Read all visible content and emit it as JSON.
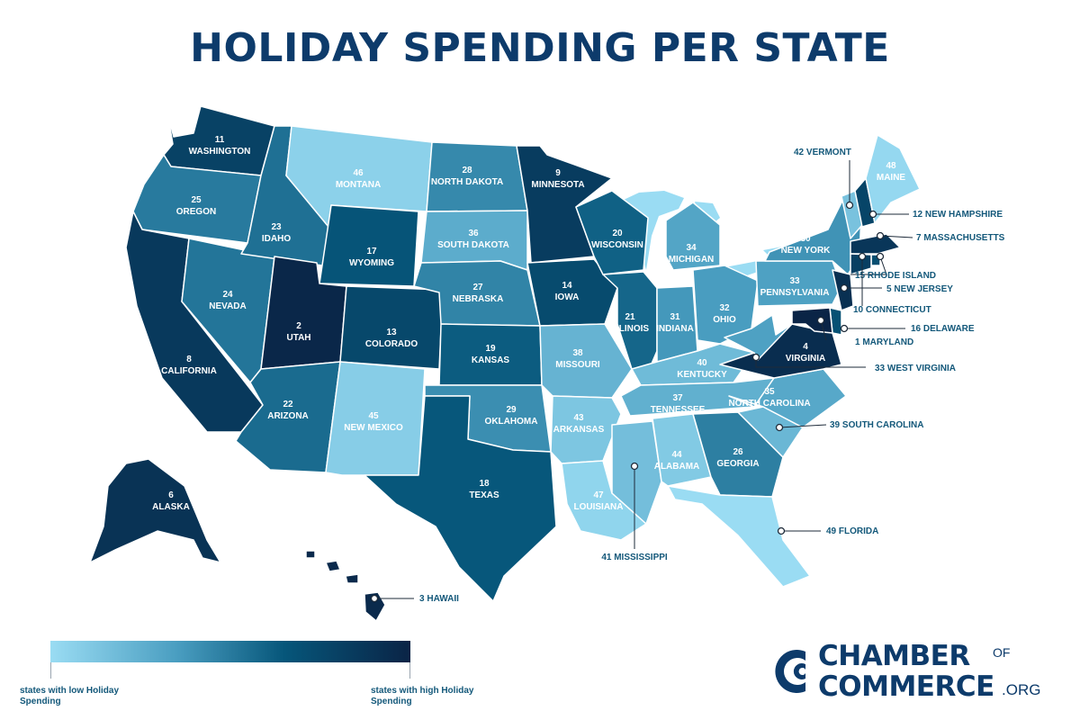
{
  "title": "HOLIDAY SPENDING PER STATE",
  "colors": {
    "title": "#0d3b6b",
    "label_outside": "#13587a",
    "scale_low": "#9adcf3",
    "scale_high": "#0a2446",
    "great_lakes": "#9adcf3"
  },
  "states": [
    {
      "id": "WA",
      "name": "WASHINGTON",
      "rank": 11
    },
    {
      "id": "OR",
      "name": "OREGON",
      "rank": 25
    },
    {
      "id": "CA",
      "name": "CALIFORNIA",
      "rank": 8
    },
    {
      "id": "NV",
      "name": "NEVADA",
      "rank": 24
    },
    {
      "id": "ID",
      "name": "IDAHO",
      "rank": 23
    },
    {
      "id": "MT",
      "name": "MONTANA",
      "rank": 46
    },
    {
      "id": "WY",
      "name": "WYOMING",
      "rank": 17
    },
    {
      "id": "UT",
      "name": "UTAH",
      "rank": 2
    },
    {
      "id": "AZ",
      "name": "ARIZONA",
      "rank": 22
    },
    {
      "id": "CO",
      "name": "COLORADO",
      "rank": 13
    },
    {
      "id": "NM",
      "name": "NEW MEXICO",
      "rank": 45
    },
    {
      "id": "ND",
      "name": "NORTH DAKOTA",
      "rank": 28
    },
    {
      "id": "SD",
      "name": "SOUTH DAKOTA",
      "rank": 36
    },
    {
      "id": "NE",
      "name": "NEBRASKA",
      "rank": 27
    },
    {
      "id": "KS",
      "name": "KANSAS",
      "rank": 19
    },
    {
      "id": "OK",
      "name": "OKLAHOMA",
      "rank": 29
    },
    {
      "id": "TX",
      "name": "TEXAS",
      "rank": 18
    },
    {
      "id": "MN",
      "name": "MINNESOTA",
      "rank": 9
    },
    {
      "id": "IA",
      "name": "IOWA",
      "rank": 14
    },
    {
      "id": "MO",
      "name": "MISSOURI",
      "rank": 38
    },
    {
      "id": "AR",
      "name": "ARKANSAS",
      "rank": 43
    },
    {
      "id": "LA",
      "name": "LOUISIANA",
      "rank": 47
    },
    {
      "id": "WI",
      "name": "WISCONSIN",
      "rank": 20
    },
    {
      "id": "IL",
      "name": "ILLINOIS",
      "rank": 21
    },
    {
      "id": "MI",
      "name": "MICHIGAN",
      "rank": 34
    },
    {
      "id": "IN",
      "name": "INDIANA",
      "rank": 31
    },
    {
      "id": "OH",
      "name": "OHIO",
      "rank": 32
    },
    {
      "id": "KY",
      "name": "KENTUCKY",
      "rank": 40
    },
    {
      "id": "TN",
      "name": "TENNESSEE",
      "rank": 37
    },
    {
      "id": "MS",
      "name": "MISSISSIPPI",
      "rank": 41
    },
    {
      "id": "AL",
      "name": "ALABAMA",
      "rank": 44
    },
    {
      "id": "GA",
      "name": "GEORGIA",
      "rank": 26
    },
    {
      "id": "FL",
      "name": "FLORIDA",
      "rank": 49
    },
    {
      "id": "SC",
      "name": "SOUTH CAROLINA",
      "rank": 39
    },
    {
      "id": "NC",
      "name": "NORTH CAROLINA",
      "rank": 35
    },
    {
      "id": "VA",
      "name": "VIRGINIA",
      "rank": 4
    },
    {
      "id": "WV",
      "name": "WEST VIRGINIA",
      "rank": 33
    },
    {
      "id": "PA",
      "name": "PENNSYLVANIA",
      "rank": 33
    },
    {
      "id": "NY",
      "name": "NEW YORK",
      "rank": 30
    },
    {
      "id": "VT",
      "name": "VERMONT",
      "rank": 42
    },
    {
      "id": "NH",
      "name": "NEW HAMPSHIRE",
      "rank": 12
    },
    {
      "id": "ME",
      "name": "MAINE",
      "rank": 48
    },
    {
      "id": "MA",
      "name": "MASSACHUSETTS",
      "rank": 7
    },
    {
      "id": "RI",
      "name": "RHODE ISLAND",
      "rank": 15
    },
    {
      "id": "CT",
      "name": "CONNECTICUT",
      "rank": 10
    },
    {
      "id": "NJ",
      "name": "NEW JERSEY",
      "rank": 5
    },
    {
      "id": "DE",
      "name": "DELAWARE",
      "rank": 16
    },
    {
      "id": "MD",
      "name": "MARYLAND",
      "rank": 1
    },
    {
      "id": "AK",
      "name": "ALASKA",
      "rank": 6
    },
    {
      "id": "HI",
      "name": "HAWAII",
      "rank": 3
    }
  ],
  "legend": {
    "low_label": "states with low Holiday Spending",
    "high_label": "states with high Holiday Spending"
  },
  "logo": {
    "line1": "CHAMBER",
    "of": "OF",
    "line2": "COMMERCE",
    "suffix": ".ORG"
  }
}
